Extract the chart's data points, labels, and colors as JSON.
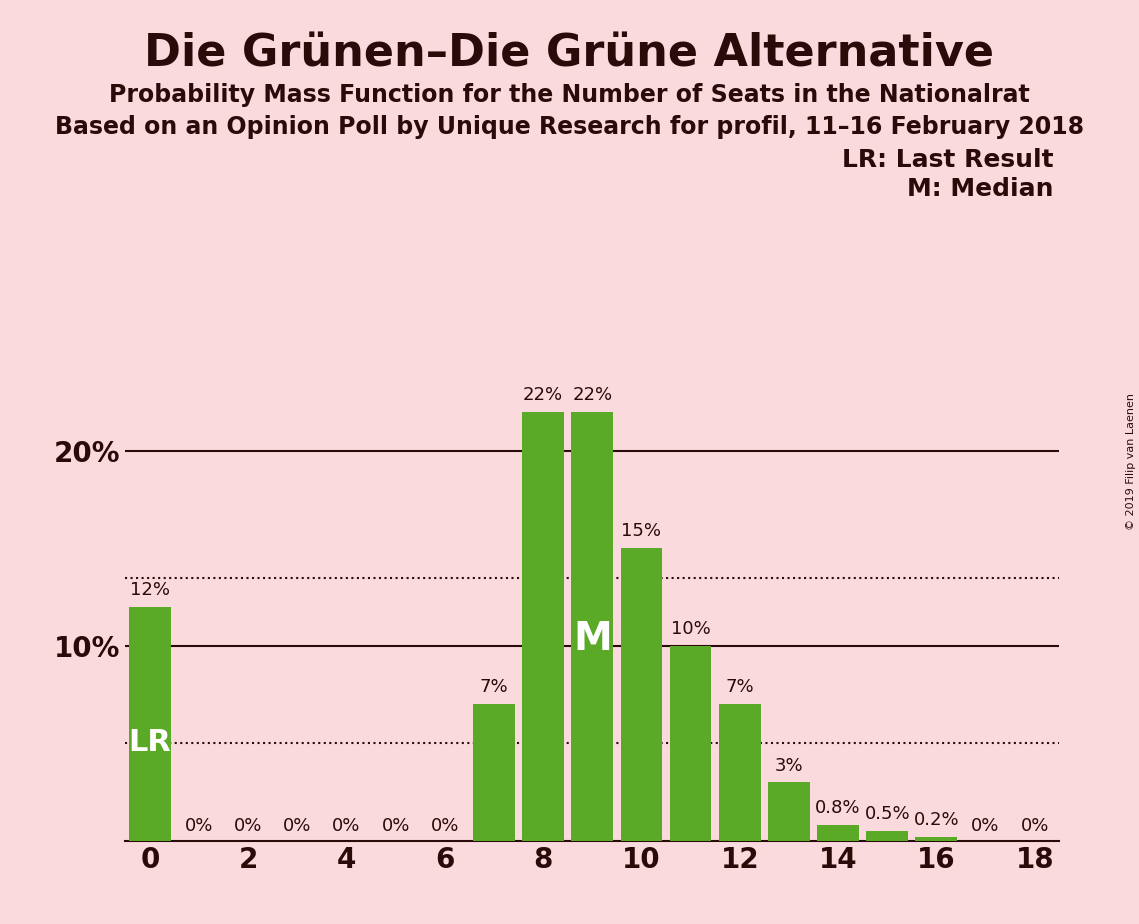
{
  "title": "Die Grünen–Die Grüne Alternative",
  "subtitle1": "Probability Mass Function for the Number of Seats in the Nationalrat",
  "subtitle2": "Based on an Opinion Poll by Unique Research for profil, 11–16 February 2018",
  "watermark": "© 2019 Filip van Laenen",
  "seats": [
    0,
    1,
    2,
    3,
    4,
    5,
    6,
    7,
    8,
    9,
    10,
    11,
    12,
    13,
    14,
    15,
    16,
    17,
    18
  ],
  "probabilities": [
    0.12,
    0.0,
    0.0,
    0.0,
    0.0,
    0.0,
    0.0,
    0.07,
    0.22,
    0.22,
    0.15,
    0.1,
    0.07,
    0.03,
    0.008,
    0.005,
    0.002,
    0.0,
    0.0
  ],
  "bar_labels": [
    "12%",
    "0%",
    "0%",
    "0%",
    "0%",
    "0%",
    "0%",
    "7%",
    "22%",
    "22%",
    "15%",
    "10%",
    "7%",
    "3%",
    "0.8%",
    "0.5%",
    "0.2%",
    "0%",
    "0%"
  ],
  "bar_color": "#5aaa28",
  "background_color": "#fadadd",
  "text_color": "#2b0a0a",
  "lr_seat": 0,
  "lr_value": 0.12,
  "lr_label": "LR",
  "median_seat": 9,
  "median_label": "M",
  "dotted_line_1": 0.135,
  "dotted_line_2": 0.05,
  "xlim": [
    -0.5,
    18.5
  ],
  "ylim": [
    0,
    0.27
  ],
  "title_fontsize": 32,
  "subtitle_fontsize": 17,
  "legend_fontsize": 18,
  "tick_fontsize": 20,
  "bar_label_fontsize": 13,
  "lr_fontsize": 22,
  "m_fontsize": 28
}
